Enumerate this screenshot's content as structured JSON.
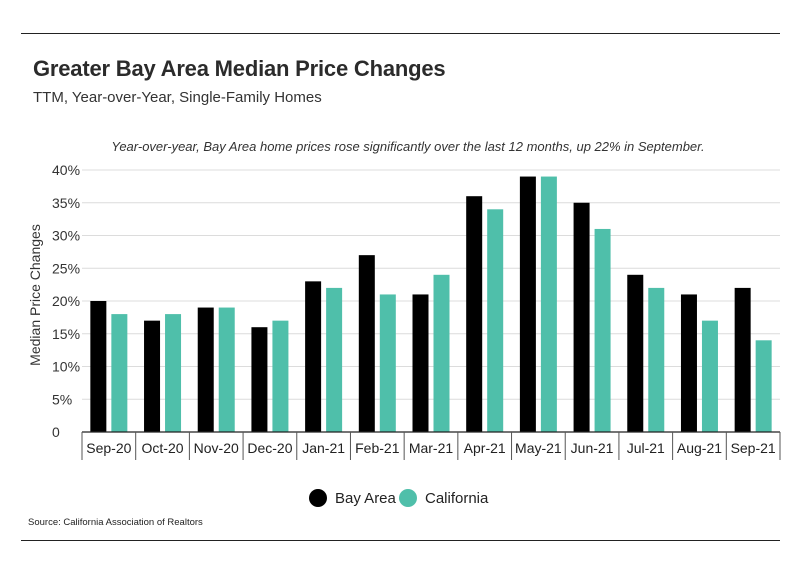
{
  "header": {
    "title": "Greater Bay Area Median Price Changes",
    "subtitle": "TTM, Year-over-Year, Single-Family Homes"
  },
  "annotation": "Year-over-year, Bay Area home prices rose significantly over the last 12 months, up 22% in September.",
  "source": "Source:  California Association of Realtors",
  "colors": {
    "bay_area": "#000000",
    "california": "#4fbfaa"
  },
  "chart_data": {
    "type": "bar",
    "title": "Greater Bay Area Median Price Changes",
    "subtitle": "TTM, Year-over-Year, Single-Family Homes",
    "xlabel": "",
    "ylabel": "Median Price Changes",
    "ylim": [
      0,
      40
    ],
    "yticks": [
      0,
      5,
      10,
      15,
      20,
      25,
      30,
      35,
      40
    ],
    "ytick_labels": [
      "0",
      "5%",
      "10%",
      "15%",
      "20%",
      "25%",
      "30%",
      "35%",
      "40%"
    ],
    "grid": true,
    "legend": "bottom-center",
    "categories": [
      "Sep-20",
      "Oct-20",
      "Nov-20",
      "Dec-20",
      "Jan-21",
      "Feb-21",
      "Mar-21",
      "Apr-21",
      "May-21",
      "Jun-21",
      "Jul-21",
      "Aug-21",
      "Sep-21"
    ],
    "series": [
      {
        "name": "Bay Area",
        "color": "#000000",
        "values": [
          20,
          17,
          19,
          16,
          23,
          27,
          21,
          36,
          39,
          35,
          24,
          21,
          22
        ]
      },
      {
        "name": "California",
        "color": "#4fbfaa",
        "values": [
          18,
          18,
          19,
          17,
          22,
          21,
          24,
          34,
          39,
          31,
          22,
          17,
          14
        ]
      }
    ]
  }
}
